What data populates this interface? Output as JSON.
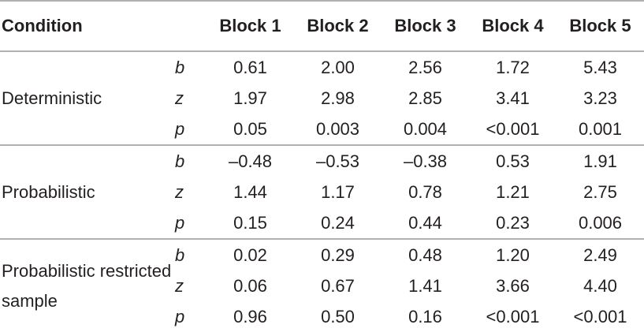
{
  "header": {
    "condition": "Condition",
    "blocks": [
      "Block 1",
      "Block 2",
      "Block 3",
      "Block 4",
      "Block 5"
    ]
  },
  "groups": [
    {
      "condition": "Deterministic",
      "rows": [
        {
          "stat": "b",
          "values": [
            "0.61",
            "2.00",
            "2.56",
            "1.72",
            "5.43"
          ]
        },
        {
          "stat": "z",
          "values": [
            "1.97",
            "2.98",
            "2.85",
            "3.41",
            "3.23"
          ]
        },
        {
          "stat": "p",
          "values": [
            "0.05",
            "0.003",
            "0.004",
            "<0.001",
            "0.001"
          ]
        }
      ]
    },
    {
      "condition": "Probabilistic",
      "rows": [
        {
          "stat": "b",
          "values": [
            "–0.48",
            "–0.53",
            "–0.38",
            "0.53",
            "1.91"
          ]
        },
        {
          "stat": "z",
          "values": [
            "1.44",
            "1.17",
            "0.78",
            "1.21",
            "2.75"
          ]
        },
        {
          "stat": "p",
          "values": [
            "0.15",
            "0.24",
            "0.44",
            "0.23",
            "0.006"
          ]
        }
      ]
    },
    {
      "condition": "Probabilistic restricted sample",
      "rows": [
        {
          "stat": "b",
          "values": [
            "0.02",
            "0.29",
            "0.48",
            "1.20",
            "2.49"
          ]
        },
        {
          "stat": "z",
          "values": [
            "0.06",
            "0.67",
            "1.41",
            "3.66",
            "4.40"
          ]
        },
        {
          "stat": "p",
          "values": [
            "0.96",
            "0.50",
            "0.16",
            "<0.001",
            "<0.001"
          ]
        }
      ]
    }
  ]
}
